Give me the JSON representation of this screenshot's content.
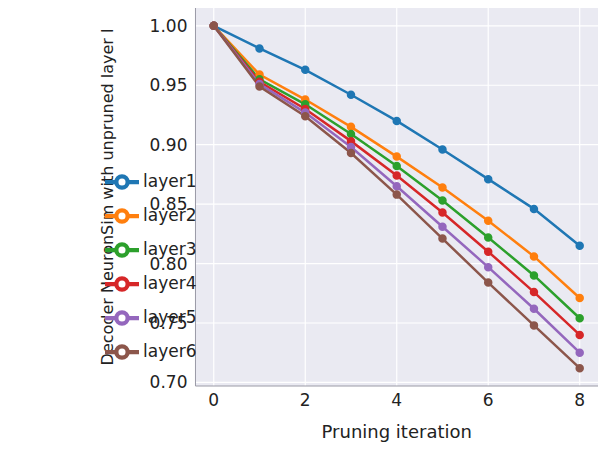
{
  "chart_data": {
    "type": "line",
    "x_label": "Pruning iteration",
    "y_label": "Decoder NeuronSim with unpruned layer l",
    "x": [
      0,
      1,
      2,
      3,
      4,
      5,
      6,
      7,
      8
    ],
    "xlim": [
      -0.4,
      8.4
    ],
    "xticks": [
      0,
      2,
      4,
      6,
      8
    ],
    "ylim": [
      0.697,
      1.015
    ],
    "yticks": [
      {
        "value": 0.7,
        "label": "0.70"
      },
      0.75,
      {
        "value": 0.8,
        "label": "0.80"
      },
      0.85,
      {
        "value": 0.9,
        "label": "0.90"
      },
      0.95,
      {
        "value": 1.0,
        "label": "1.00"
      }
    ],
    "grid": true,
    "legend": "lower left",
    "marker": "circle",
    "series": [
      {
        "name": "layer1",
        "color": "#1f77b4",
        "values": [
          1.0,
          0.981,
          0.963,
          0.942,
          0.92,
          0.896,
          0.871,
          0.846,
          0.815
        ]
      },
      {
        "name": "layer2",
        "color": "#ff7f0e",
        "values": [
          1.0,
          0.959,
          0.938,
          0.915,
          0.89,
          0.864,
          0.836,
          0.806,
          0.771
        ]
      },
      {
        "name": "layer3",
        "color": "#2ca02c",
        "values": [
          1.0,
          0.955,
          0.934,
          0.909,
          0.882,
          0.853,
          0.822,
          0.79,
          0.754
        ]
      },
      {
        "name": "layer4",
        "color": "#d62728",
        "values": [
          1.0,
          0.953,
          0.93,
          0.903,
          0.874,
          0.843,
          0.81,
          0.776,
          0.74
        ]
      },
      {
        "name": "layer5",
        "color": "#9467bd",
        "values": [
          1.0,
          0.951,
          0.927,
          0.898,
          0.865,
          0.831,
          0.797,
          0.762,
          0.725
        ]
      },
      {
        "name": "layer6",
        "color": "#8c564b",
        "values": [
          1.0,
          0.949,
          0.924,
          0.893,
          0.858,
          0.821,
          0.784,
          0.748,
          0.712
        ]
      }
    ]
  }
}
